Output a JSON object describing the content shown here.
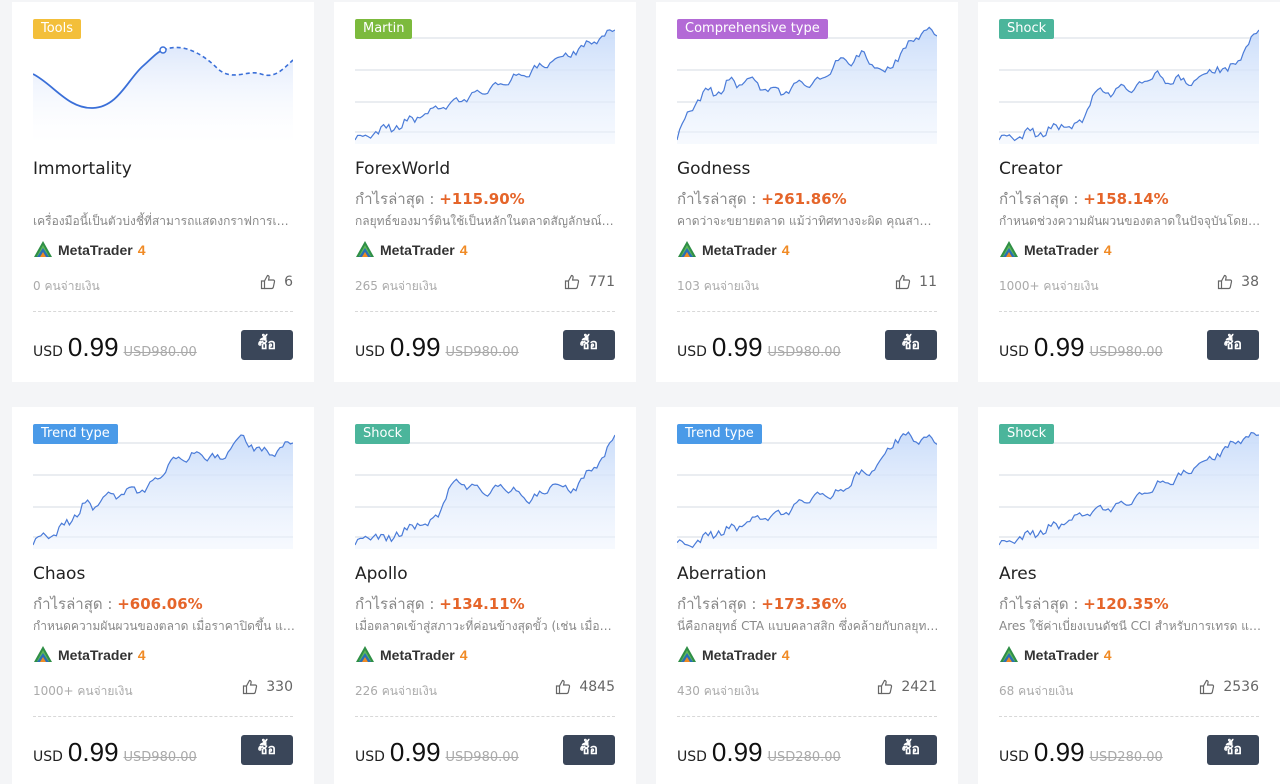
{
  "colors": {
    "accent": "#e5652a",
    "buy_button": "#3a4659",
    "line": "#4a7bd8",
    "fill": "#dfe9fb"
  },
  "products": [
    {
      "tag": "Tools",
      "tag_color": "#f3bf3a",
      "title": "Immortality",
      "profit_label": "",
      "profit_value": "",
      "desc": "เครื่องมือนี้เป็นตัวบ่งชี้ที่สามารถแสดงกราฟการเทรดได้",
      "platform": "MetaTrader",
      "platform_num": "4",
      "buyers": "0 คนจ่ายเงิน",
      "likes": "6",
      "currency": "USD",
      "price": "0.99",
      "old_price": "USD980.00",
      "buy_label": "ซื้อ",
      "chart": {
        "type": "tools",
        "values": []
      }
    },
    {
      "tag": "Martin",
      "tag_color": "#7cba3d",
      "title": "ForexWorld",
      "profit_label": "กำไรล่าสุด : ",
      "profit_value": "+115.90%",
      "desc": "กลยุทธ์ของมาร์ตินใช้เป็นหลักในตลาดสัญลักษณ์ที่มีความผันผวน",
      "platform": "MetaTrader",
      "platform_num": "4",
      "buyers": "265 คนจ่ายเงิน",
      "likes": "771",
      "currency": "USD",
      "price": "0.99",
      "old_price": "USD980.00",
      "buy_label": "ซื้อ",
      "chart": {
        "type": "line",
        "values": [
          8,
          12,
          15,
          18,
          20,
          24,
          27,
          30,
          34,
          37,
          40,
          44,
          48,
          51,
          55,
          58,
          62,
          66,
          70,
          74,
          78,
          82,
          86,
          90,
          95,
          100
        ]
      }
    },
    {
      "tag": "Comprehensive type",
      "tag_color": "#b36ad6",
      "title": "Godness",
      "profit_label": "กำไรล่าสุด : ",
      "profit_value": "+261.86%",
      "desc": "คาดว่าจะขยายตลาด แม้ว่าทิศทางจะผิด คุณสามารถทำกำไรได้",
      "platform": "MetaTrader",
      "platform_num": "4",
      "buyers": "103 คนจ่ายเงิน",
      "likes": "11",
      "currency": "USD",
      "price": "0.99",
      "old_price": "USD980.00",
      "buy_label": "ซื้อ",
      "chart": {
        "type": "line",
        "values": [
          0,
          28,
          40,
          50,
          48,
          60,
          55,
          62,
          50,
          52,
          45,
          52,
          58,
          56,
          62,
          72,
          82,
          78,
          88,
          72,
          68,
          80,
          92,
          102,
          110,
          104
        ]
      }
    },
    {
      "tag": "Shock",
      "tag_color": "#4bb59b",
      "title": "Creator",
      "profit_label": "กำไรล่าสุด : ",
      "profit_value": "+158.14%",
      "desc": "กำหนดช่วงความผันผวนของตลาดในปัจจุบันโดยใช้ตัวบ่งชี้",
      "platform": "MetaTrader",
      "platform_num": "4",
      "buyers": "1000+ คนจ่ายเงิน",
      "likes": "38",
      "currency": "USD",
      "price": "0.99",
      "old_price": "USD980.00",
      "buy_label": "ซื้อ",
      "chart": {
        "type": "line",
        "values": [
          5,
          10,
          8,
          14,
          12,
          16,
          20,
          16,
          22,
          48,
          52,
          50,
          58,
          54,
          62,
          70,
          60,
          66,
          60,
          64,
          70,
          76,
          72,
          82,
          98,
          112
        ]
      }
    },
    {
      "tag": "Trend type",
      "tag_color": "#4a9ae8",
      "title": "Chaos",
      "profit_label": "กำไรล่าสุด : ",
      "profit_value": "+606.06%",
      "desc": "กำหนดความผันผวนของตลาด เมื่อราคาปิดขึ้น และต่ำกว่า",
      "platform": "MetaTrader",
      "platform_num": "4",
      "buyers": "1000+ คนจ่ายเงิน",
      "likes": "330",
      "currency": "USD",
      "price": "0.99",
      "old_price": "USD980.00",
      "buy_label": "ซื้อ",
      "chart": {
        "type": "line",
        "values": [
          0,
          12,
          10,
          20,
          30,
          42,
          38,
          50,
          46,
          56,
          52,
          58,
          66,
          80,
          88,
          86,
          92,
          88,
          86,
          96,
          110,
          100,
          94,
          90,
          98,
          102
        ]
      }
    },
    {
      "tag": "Shock",
      "tag_color": "#4bb59b",
      "title": "Apollo",
      "profit_label": "กำไรล่าสุด : ",
      "profit_value": "+134.11%",
      "desc": "เมื่อตลาดเข้าสู่สภาวะที่ค่อนข้างสุดขั้ว (เช่น เมื่อตลาดผันผวน",
      "platform": "MetaTrader",
      "platform_num": "4",
      "buyers": "226 คนจ่ายเงิน",
      "likes": "4845",
      "currency": "USD",
      "price": "0.99",
      "old_price": "USD980.00",
      "buy_label": "ซื้อ",
      "chart": {
        "type": "line",
        "values": [
          10,
          18,
          20,
          14,
          22,
          24,
          30,
          28,
          36,
          62,
          68,
          64,
          62,
          58,
          66,
          60,
          56,
          52,
          58,
          66,
          64,
          62,
          72,
          82,
          92,
          112
        ]
      }
    },
    {
      "tag": "Trend type",
      "tag_color": "#4a9ae8",
      "title": "Aberration",
      "profit_label": "กำไรล่าสุด : ",
      "profit_value": "+173.36%",
      "desc": "นี่คือกลยุทธ์ CTA แบบคลาสสิก ซึ่งคล้ายกับกลยุทธ์ Bollinger",
      "platform": "MetaTrader",
      "platform_num": "4",
      "buyers": "430 คนจ่ายเงิน",
      "likes": "2421",
      "currency": "USD",
      "price": "0.99",
      "old_price": "USD280.00",
      "buy_label": "ซื้อ",
      "chart": {
        "type": "line",
        "values": [
          4,
          2,
          6,
          10,
          14,
          16,
          18,
          22,
          24,
          26,
          28,
          32,
          40,
          42,
          46,
          44,
          48,
          60,
          64,
          66,
          80,
          92,
          96,
          90,
          94,
          88
        ]
      }
    },
    {
      "tag": "Shock",
      "tag_color": "#4bb59b",
      "title": "Ares",
      "profit_label": "กำไรล่าสุด : ",
      "profit_value": "+120.35%",
      "desc": "Ares ใช้ค่าเบี่ยงเบนดัชนี CCI สำหรับการเทรด และกลยุทธ์",
      "platform": "MetaTrader",
      "platform_num": "4",
      "buyers": "68 คนจ่ายเงิน",
      "likes": "2536",
      "currency": "USD",
      "price": "0.99",
      "old_price": "USD280.00",
      "buy_label": "ซื้อ",
      "chart": {
        "type": "line",
        "values": [
          0,
          4,
          8,
          10,
          14,
          18,
          20,
          24,
          28,
          32,
          34,
          36,
          40,
          44,
          50,
          56,
          60,
          64,
          70,
          76,
          82,
          88,
          94,
          100,
          104,
          106
        ]
      }
    }
  ]
}
